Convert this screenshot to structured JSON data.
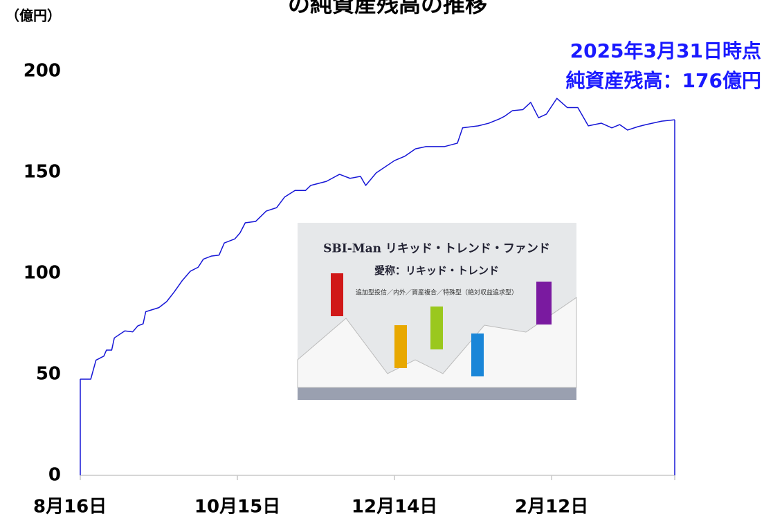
{
  "chart_data": {
    "type": "line",
    "title": "の純資産残高の推移",
    "y_label": "（億円）",
    "annotations": [
      "2025年3月31日時点",
      "純資産残高：176億円"
    ],
    "image_texts": [
      "SBI-Man リキッド・トレンド・ファンド",
      "愛称：リキッド・トレンド",
      "追加型投信／内外／資産複合／特殊型（絶対収益追求型）"
    ],
    "x": [
      0,
      4,
      6,
      9,
      10,
      12,
      13,
      17,
      20,
      22,
      24,
      25,
      30,
      33,
      36,
      39,
      42,
      45,
      47,
      50,
      53,
      55,
      59,
      61,
      63,
      67,
      71,
      75,
      78,
      82,
      86,
      88,
      94,
      99,
      103,
      107,
      109,
      113,
      120,
      124,
      128,
      132,
      139,
      144,
      146,
      152,
      156,
      160,
      162,
      165,
      169,
      172,
      175,
      178,
      182,
      186,
      190,
      194,
      199,
      203,
      206,
      209,
      213,
      216,
      222,
      227
    ],
    "series": [
      {
        "name": "純資産残高",
        "color": "#1515d6",
        "values": [
          47.6,
          47.6,
          57,
          59,
          62,
          62,
          68,
          71.5,
          71,
          74,
          75,
          81,
          83,
          86,
          91,
          96.5,
          101,
          103,
          107,
          108.5,
          109,
          115,
          117,
          120,
          125,
          125.7,
          130.8,
          132.5,
          137.7,
          141,
          141,
          143.5,
          145.5,
          149,
          147,
          148,
          143.5,
          149.7,
          155.8,
          158,
          161.6,
          162.7,
          162.7,
          164.4,
          172,
          173,
          174.3,
          176.4,
          177.7,
          180.5,
          181,
          184.6,
          177,
          178.8,
          186.6,
          182,
          182,
          173,
          174.3,
          172,
          173.6,
          170.9,
          172.6,
          173.6,
          175.3,
          176
        ]
      }
    ],
    "xlim": [
      0,
      227
    ],
    "xticks": [
      {
        "value": 0,
        "label": "8月16日"
      },
      {
        "value": 60,
        "label": "10月15日"
      },
      {
        "value": 120,
        "label": "12月14日"
      },
      {
        "value": 180,
        "label": "2月12日"
      }
    ],
    "ylim": [
      0,
      200
    ],
    "yticks": [
      0,
      50,
      100,
      150,
      200
    ],
    "grid": false
  }
}
